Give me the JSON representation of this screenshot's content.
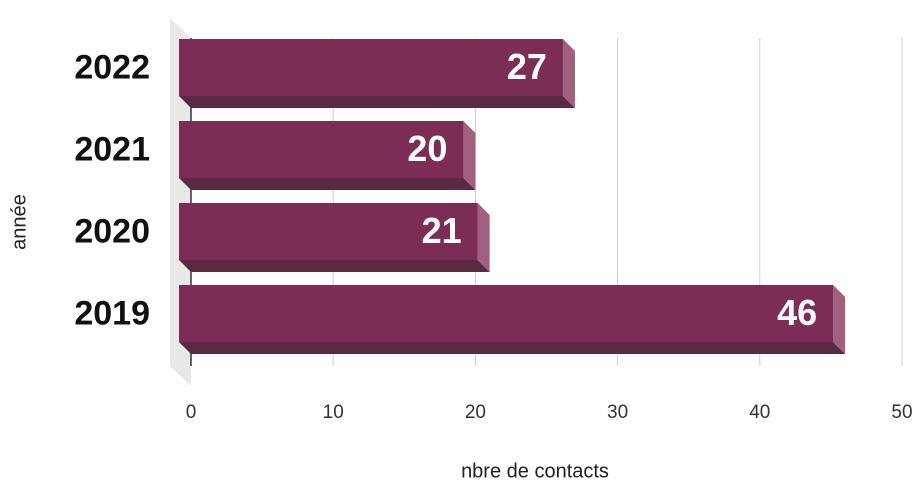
{
  "chart_data": {
    "type": "bar3d_horizontal",
    "categories": [
      "2022",
      "2021",
      "2020",
      "2019"
    ],
    "values": [
      27,
      20,
      21,
      46
    ],
    "color": "#7b2d56",
    "xlabel": "nbre de contacts",
    "ylabel": "année",
    "xlim": [
      0,
      50
    ],
    "xticks": [
      0,
      10,
      20,
      30,
      40,
      50
    ],
    "grid": true
  }
}
